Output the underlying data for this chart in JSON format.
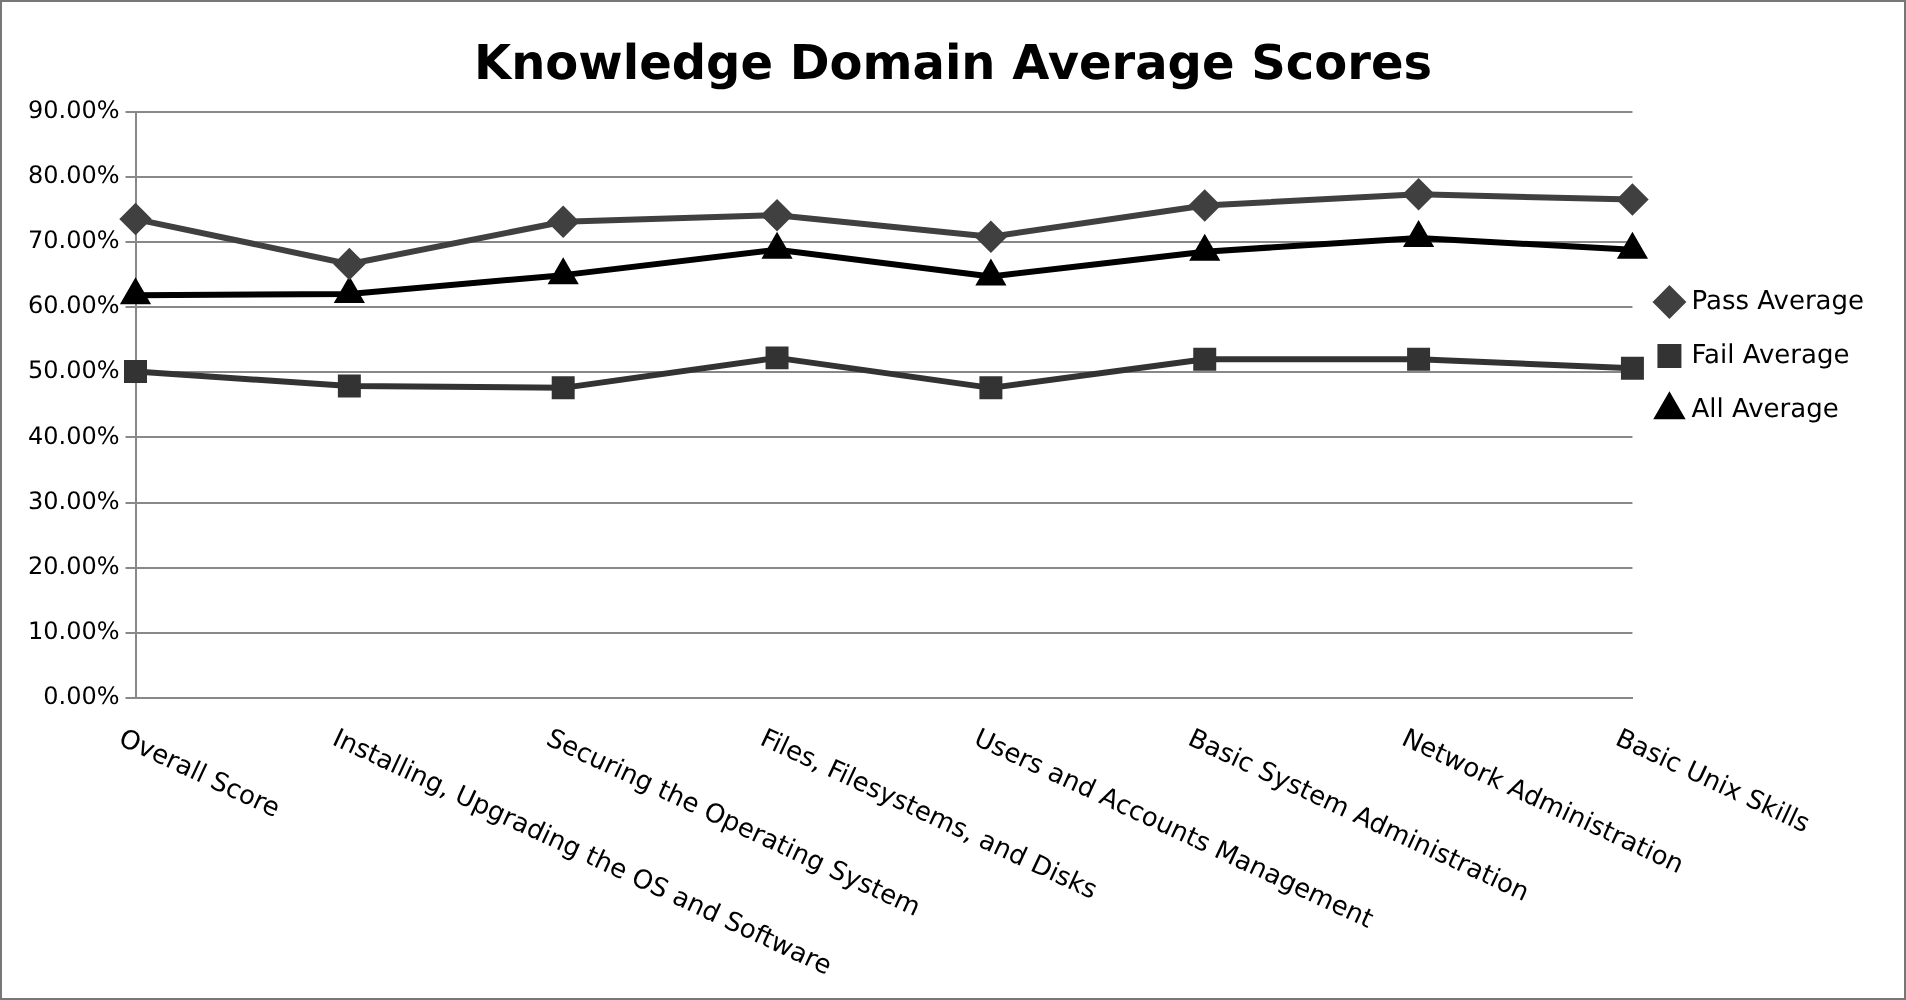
{
  "chart_data": {
    "type": "line",
    "title": "Knowledge Domain Average Scores",
    "categories": [
      "Overall Score",
      "Installing, Upgrading the OS and Software",
      "Securing the Operating System",
      "Files, Filesystems, and Disks",
      "Users and Accounts Management",
      "Basic System Administration",
      "Network Administration",
      "Basic Unix Skills"
    ],
    "series": [
      {
        "name": "Pass Average",
        "color": "#404040",
        "marker": "diamond",
        "values": [
          73.5,
          66.6,
          73.1,
          74.1,
          70.8,
          75.6,
          77.3,
          76.5
        ]
      },
      {
        "name": "Fail Average",
        "color": "#333333",
        "marker": "square",
        "values": [
          50.1,
          47.9,
          47.6,
          52.2,
          47.6,
          52.0,
          52.0,
          50.6
        ]
      },
      {
        "name": "All Average",
        "color": "#000000",
        "marker": "triangle",
        "values": [
          61.8,
          62.0,
          64.9,
          68.8,
          64.7,
          68.5,
          70.6,
          68.8
        ]
      }
    ],
    "ylim": [
      0,
      90
    ],
    "yticks": [
      {
        "value": 0,
        "label": "0.00%"
      },
      {
        "value": 10,
        "label": "10.00%"
      },
      {
        "value": 20,
        "label": "20.00%"
      },
      {
        "value": 30,
        "label": "30.00%"
      },
      {
        "value": 40,
        "label": "40.00%"
      },
      {
        "value": 50,
        "label": "50.00%"
      },
      {
        "value": 60,
        "label": "60.00%"
      },
      {
        "value": 70,
        "label": "70.00%"
      },
      {
        "value": 80,
        "label": "80.00%"
      },
      {
        "value": 90,
        "label": "90.00%"
      }
    ],
    "grid": "y",
    "legend": "right",
    "line_style": "solid"
  }
}
